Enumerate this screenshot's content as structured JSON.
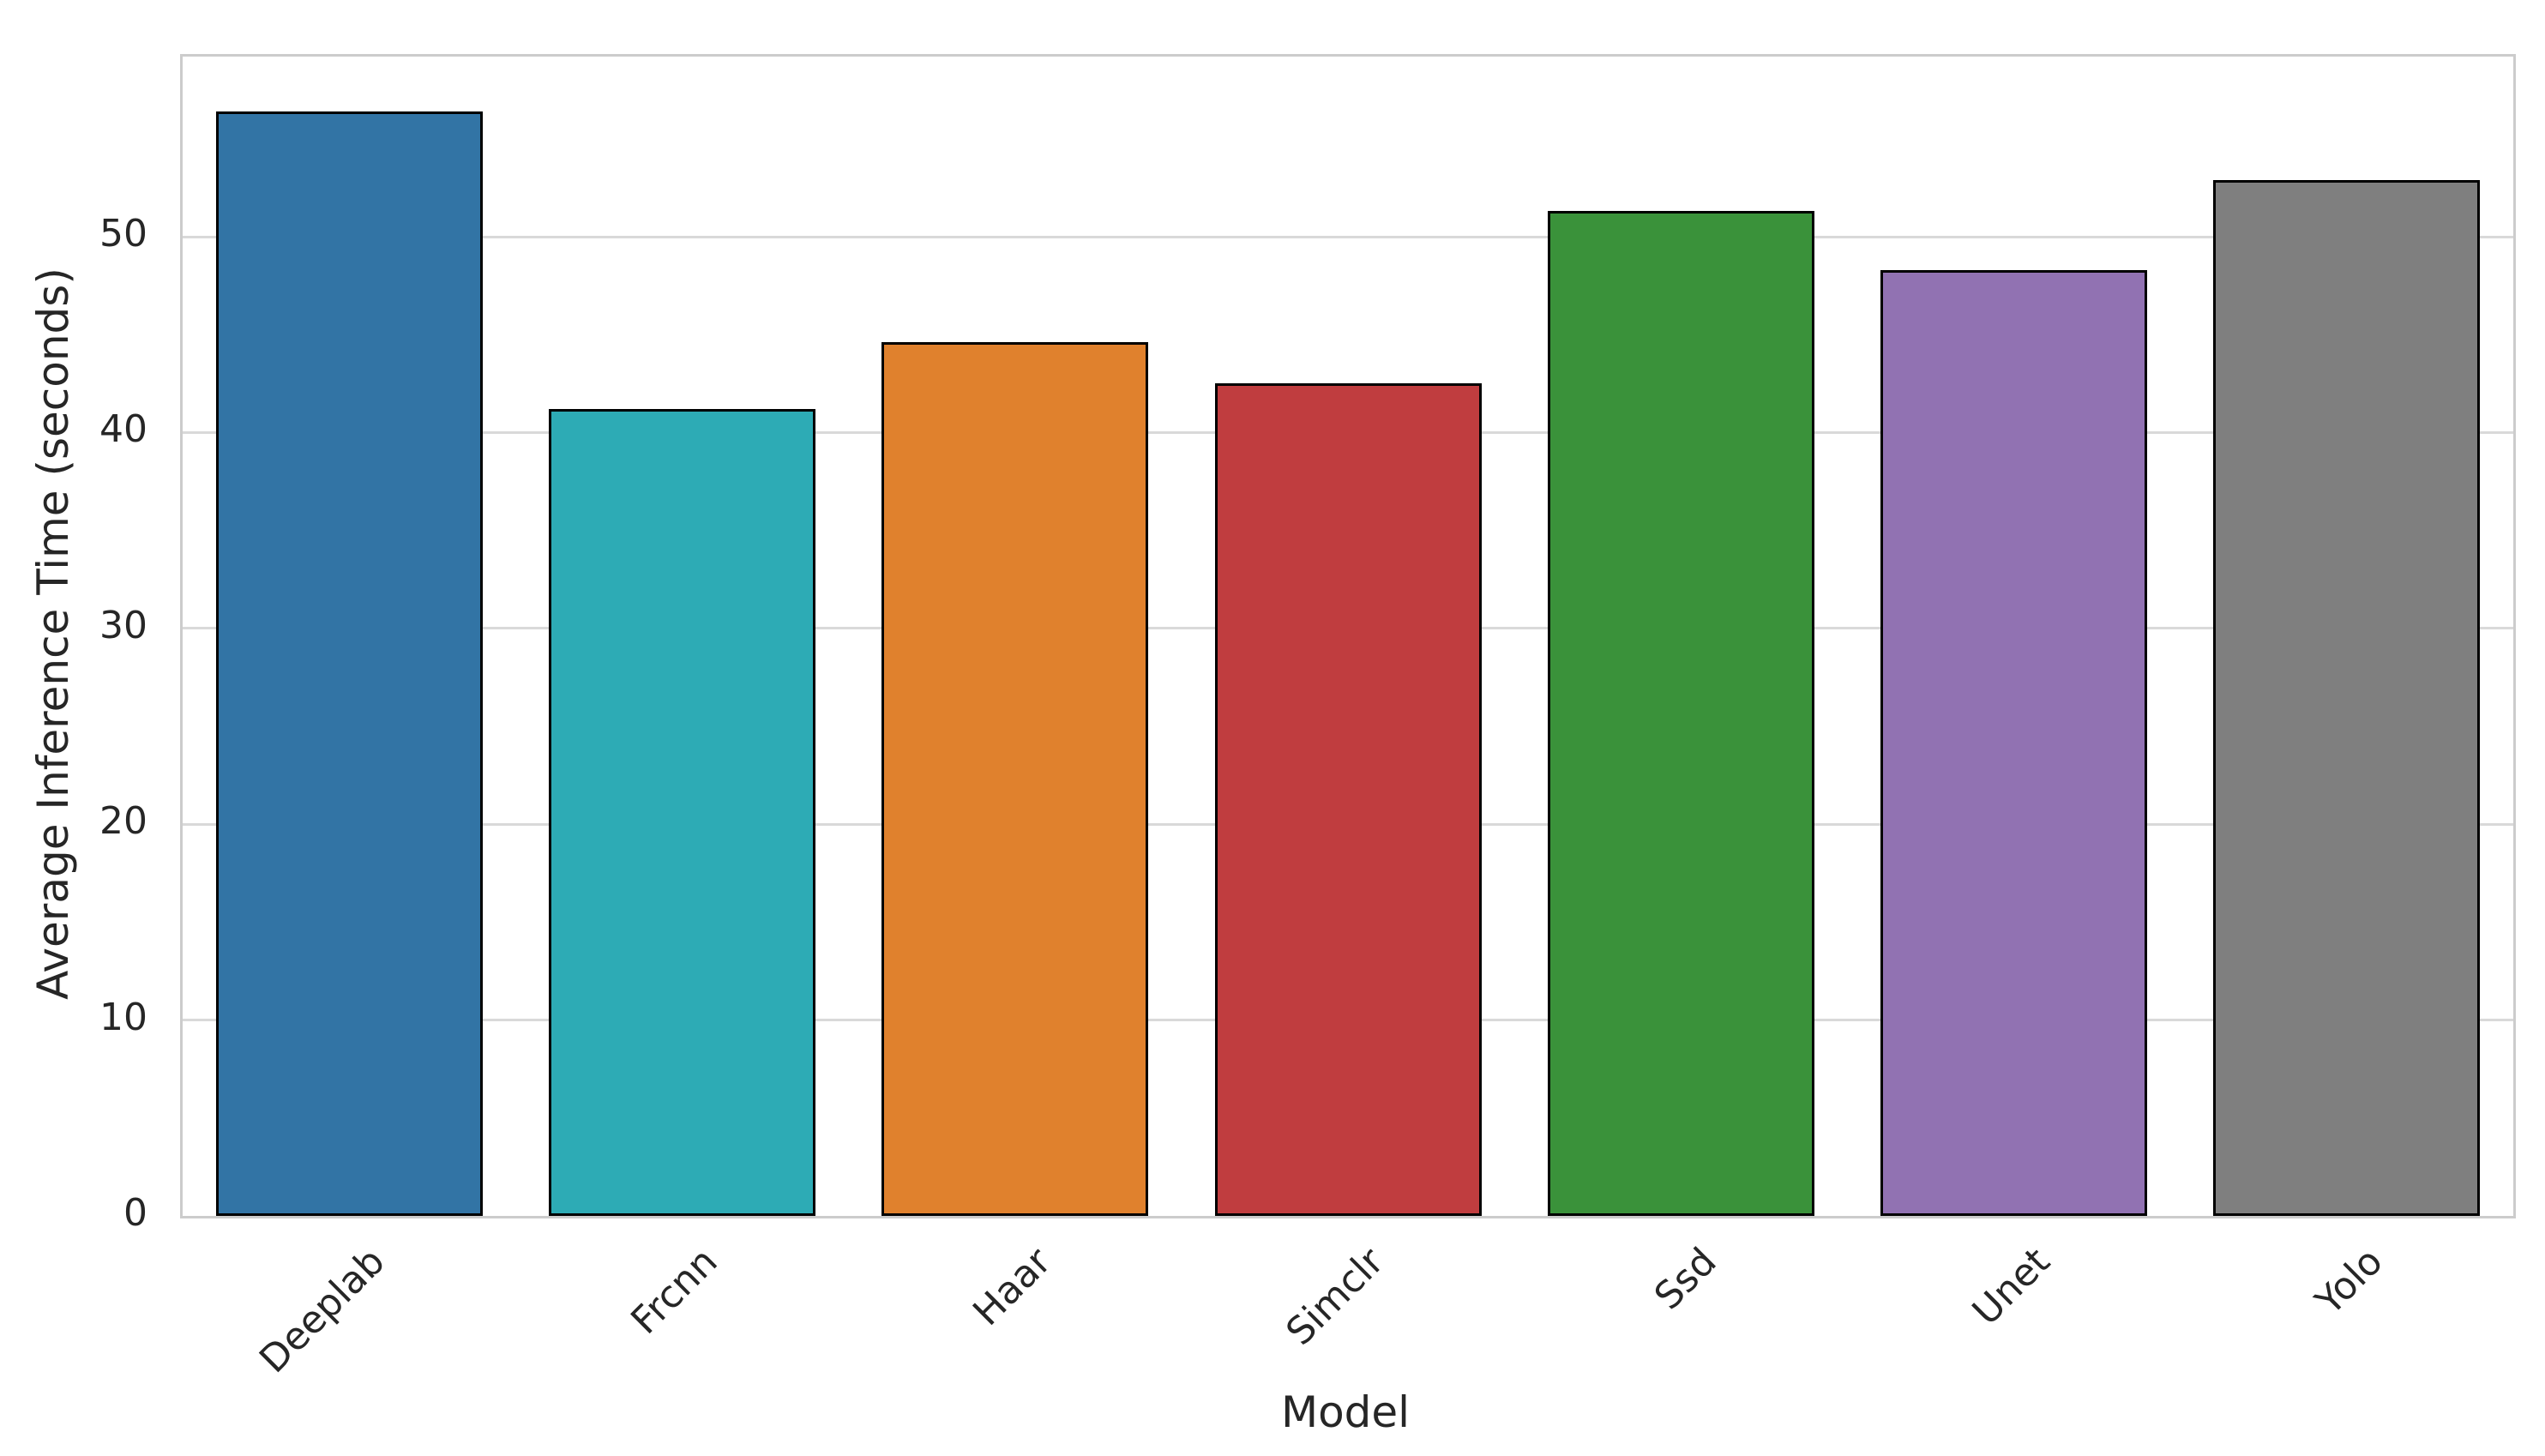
{
  "chart_data": {
    "type": "bar",
    "title": "",
    "xlabel": "Model",
    "ylabel": "Average Inference Time (seconds)",
    "categories": [
      "Deeplab",
      "Frcnn",
      "Haar",
      "Simclr",
      "Ssd",
      "Unet",
      "Yolo"
    ],
    "values": [
      56.4,
      41.2,
      44.6,
      42.5,
      51.3,
      48.3,
      52.9
    ],
    "bar_colors": [
      "#3274a5",
      "#2dabb5",
      "#e0812d",
      "#c03d3f",
      "#3a923a",
      "#9172b2",
      "#7f7f7f"
    ],
    "bar_edge_color": "#000000",
    "yticks": [
      0,
      10,
      20,
      30,
      40,
      50
    ],
    "ylim": [
      0,
      59.2
    ],
    "xtick_rotation_deg": 45,
    "grid": "horizontal",
    "grid_color": "#d9d9d9",
    "spine_color": "#cccccc",
    "tick_label_color": "#262626",
    "background_color": "#ffffff",
    "legend_position": "none"
  }
}
